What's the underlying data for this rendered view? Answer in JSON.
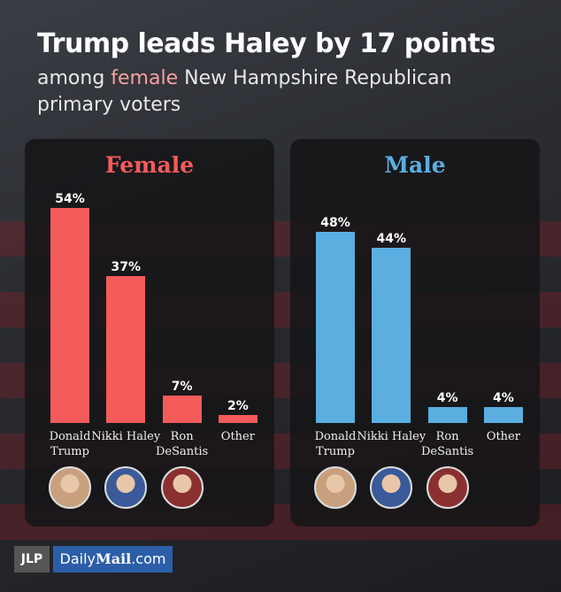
{
  "header": {
    "title": "Trump leads Haley by 17 points",
    "subtitle_parts": [
      "among",
      "female",
      "New Hampshire Republican primary voters"
    ]
  },
  "chart_data": [
    {
      "type": "bar",
      "title": "Female",
      "color": "#f45b5b",
      "categories": [
        "Donald Trump",
        "Nikki Haley",
        "Ron DeSantis",
        "Other"
      ],
      "values": [
        54,
        37,
        7,
        2
      ],
      "value_labels": [
        "54%",
        "37%",
        "7%",
        "2%"
      ]
    },
    {
      "type": "bar",
      "title": "Male",
      "color": "#5aaee0",
      "categories": [
        "Donald Trump",
        "Nikki Haley",
        "Ron DeSantis",
        "Other"
      ],
      "values": [
        48,
        44,
        4,
        4
      ],
      "value_labels": [
        "48%",
        "44%",
        "4%",
        "4%"
      ]
    }
  ],
  "footer": {
    "jlp": "JLP",
    "brand": [
      "Daily",
      "Mail",
      ".com"
    ]
  }
}
